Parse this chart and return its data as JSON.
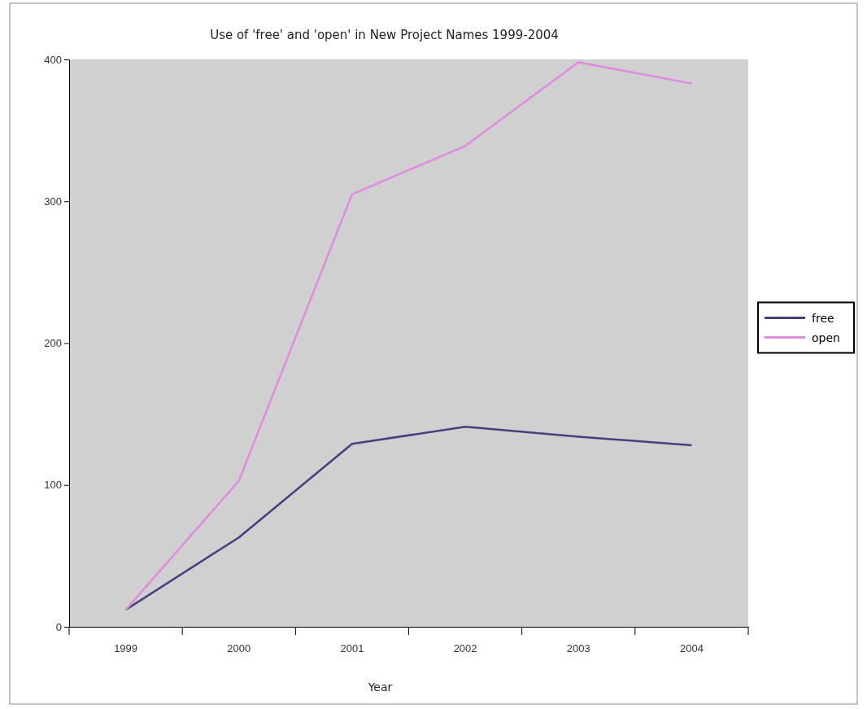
{
  "chart_data": {
    "type": "line",
    "title": "Use of 'free' and 'open' in New Project Names 1999-2004",
    "xlabel": "Year",
    "categories": [
      "1999",
      "2000",
      "2001",
      "2002",
      "2003",
      "2004"
    ],
    "series": [
      {
        "name": "free",
        "color": "#4a3f7e",
        "values": [
          12,
          63,
          129,
          141,
          134,
          128
        ]
      },
      {
        "name": "open",
        "color": "#e08ae0",
        "values": [
          12,
          103,
          305,
          339,
          398,
          383
        ]
      }
    ],
    "ylim": [
      0,
      400
    ],
    "yticks": [
      0,
      100,
      200,
      300,
      400
    ],
    "grid": false,
    "legend": "right",
    "marker": "none",
    "line_style": "solid"
  }
}
